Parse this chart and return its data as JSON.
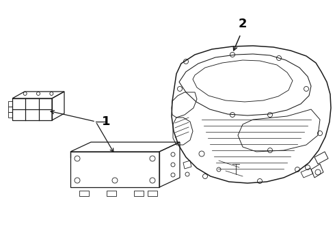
{
  "background_color": "#ffffff",
  "line_color": "#1a1a1a",
  "label_color": "#000000",
  "label_fontsize": 13,
  "label_fontweight": "bold",
  "part1_label": "1",
  "part2_label": "2",
  "figsize": [
    4.9,
    3.6
  ],
  "dpi": 100
}
